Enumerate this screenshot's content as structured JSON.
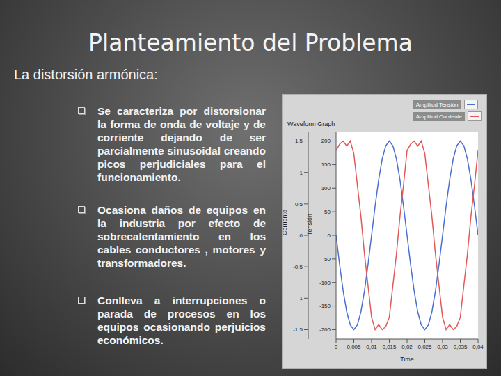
{
  "title": "Planteamiento del Problema",
  "subtitle": "La distorsión armónica:",
  "bullets": [
    "Se caracteriza por distorsionar la forma de onda de voltaje y de corriente dejando de ser parcialmente sinusoidal creando picos perjudiciales para el funcionamiento.",
    "Ocasiona daños de equipos en la industria por efecto de sobrecalentamiento en los cables conductores , motores y transformadores.",
    "Conlleva a interrupciones o parada de procesos en los equipos ocasionando perjuicios económicos."
  ],
  "chart_data": {
    "type": "line",
    "title": "Waveform Graph",
    "x_label": "Time",
    "y_label": "Tensión",
    "y2_label": "Corriente",
    "x": [
      0,
      0.001,
      0.002,
      0.003,
      0.004,
      0.005,
      0.006,
      0.007,
      0.008,
      0.009,
      0.01,
      0.011,
      0.012,
      0.013,
      0.014,
      0.015,
      0.016,
      0.017,
      0.018,
      0.019,
      0.02,
      0.021,
      0.022,
      0.023,
      0.024,
      0.025,
      0.026,
      0.027,
      0.028,
      0.029,
      0.03,
      0.031,
      0.032,
      0.033,
      0.034,
      0.035,
      0.036,
      0.037,
      0.038,
      0.039,
      0.04
    ],
    "xlim": [
      0,
      0.04
    ],
    "xticks": [
      0,
      {
        "value": 0.005,
        "label": "0,005"
      },
      {
        "value": 0.01,
        "label": "0,01"
      },
      {
        "value": 0.015,
        "label": "0,015"
      },
      {
        "value": 0.02,
        "label": "0,02"
      },
      {
        "value": 0.025,
        "label": "0,025"
      },
      {
        "value": 0.03,
        "label": "0,03"
      },
      {
        "value": 0.035,
        "label": "0,035"
      },
      {
        "value": 0.04,
        "label": "0,04"
      }
    ],
    "ylim": [
      -220,
      220
    ],
    "yticks": [
      -200,
      -150,
      -100,
      -50,
      0,
      50,
      100,
      150,
      200
    ],
    "y2lim": [
      -1.65,
      1.65
    ],
    "y2ticks": [
      {
        "value": -1.5,
        "label": "-1,5"
      },
      -1,
      {
        "value": -0.5,
        "label": "-0,5"
      },
      0,
      {
        "value": 0.5,
        "label": "0,5"
      },
      1,
      {
        "value": 1.5,
        "label": "1,5"
      }
    ],
    "grid": false,
    "legend": "upper right",
    "series": [
      {
        "name": "Amplitud Tensión",
        "color": "#4a6fd1",
        "values": [
          0,
          -62,
          -118,
          -162,
          -190,
          -200,
          -190,
          -162,
          -118,
          -62,
          0,
          62,
          118,
          162,
          190,
          200,
          190,
          162,
          118,
          62,
          0,
          -62,
          -118,
          -162,
          -190,
          -200,
          -190,
          -162,
          -118,
          -62,
          0,
          62,
          118,
          162,
          190,
          200,
          190,
          162,
          118,
          62,
          0
        ]
      },
      {
        "name": "Amplitud Corriente",
        "color": "#e05a5a",
        "axis": "y2",
        "values": [
          1.35,
          1.45,
          1.5,
          1.42,
          1.5,
          1.3,
          0.8,
          0.3,
          -0.3,
          -0.8,
          -1.3,
          -1.5,
          -1.42,
          -1.5,
          -1.45,
          -1.3,
          -0.8,
          -0.3,
          0.3,
          0.8,
          1.35,
          1.45,
          1.5,
          1.42,
          1.5,
          1.3,
          0.8,
          0.3,
          -0.3,
          -0.8,
          -1.3,
          -1.5,
          -1.42,
          -1.5,
          -1.45,
          -1.3,
          -0.8,
          -0.3,
          0.3,
          0.8,
          1.35
        ]
      }
    ]
  }
}
